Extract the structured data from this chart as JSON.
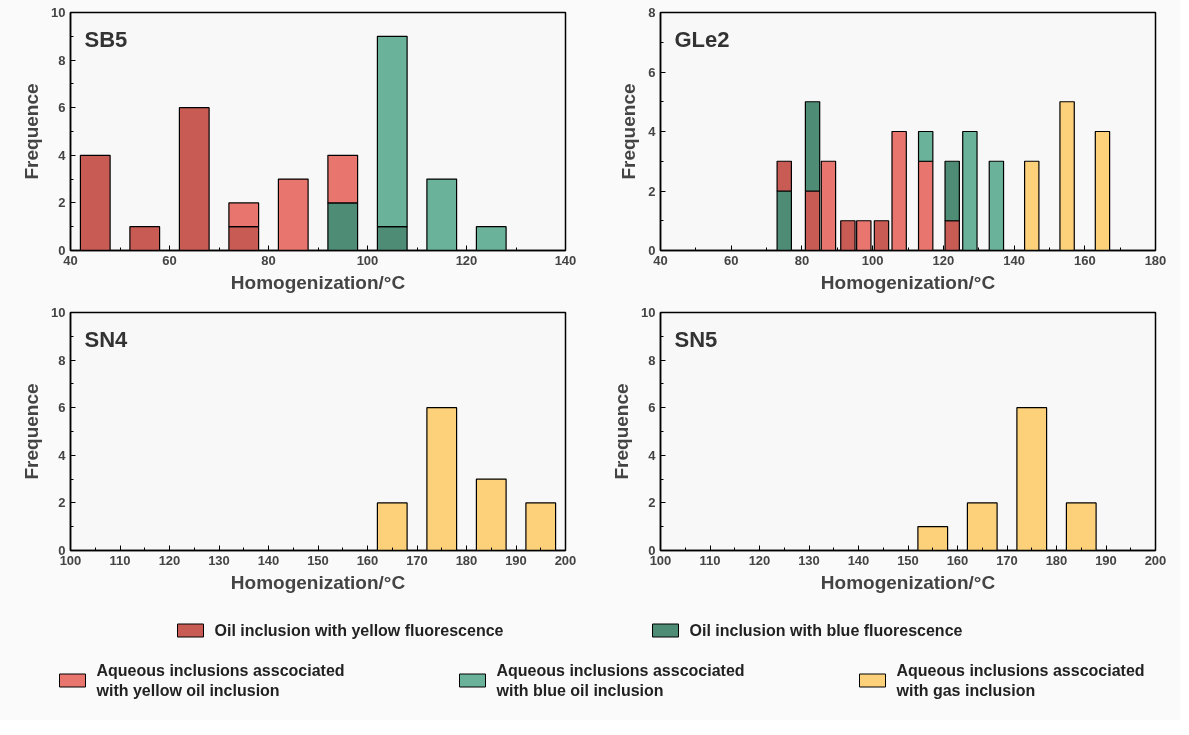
{
  "chart_data": [
    {
      "type": "bar",
      "stacked": true,
      "title": "SB5",
      "xlabel": "Homogenization/°C",
      "ylabel": "Frequence",
      "xlim": [
        40,
        140
      ],
      "xticks": [
        40,
        60,
        80,
        100,
        120,
        140
      ],
      "ylim": [
        0,
        10
      ],
      "yticks": [
        0,
        2,
        4,
        6,
        8,
        10
      ],
      "grid": false,
      "legend": "bottom",
      "x": [
        45,
        55,
        65,
        75,
        85,
        95,
        105,
        115,
        125
      ],
      "series": [
        {
          "name": "Oil inclusion with yellow fluorescence",
          "color": "#c85c55",
          "values": [
            4,
            1,
            6,
            1,
            null,
            null,
            null,
            null,
            null
          ]
        },
        {
          "name": "Oil inclusion with blue fluorescence",
          "color": "#4e8c76",
          "values": [
            null,
            null,
            null,
            null,
            null,
            2,
            1,
            null,
            null
          ]
        },
        {
          "name": "Aqueous inclusions asscociated with yellow oil inclusion",
          "color": "#e8766e",
          "values": [
            null,
            null,
            null,
            1,
            3,
            2,
            null,
            null,
            null
          ]
        },
        {
          "name": "Aqueous inclusions asscociated with blue oil inclusion",
          "color": "#6ab39a",
          "values": [
            null,
            null,
            null,
            null,
            null,
            null,
            8,
            3,
            1
          ]
        }
      ]
    },
    {
      "type": "bar",
      "stacked": true,
      "title": "GLe2",
      "xlabel": "Homogenization/°C",
      "ylabel": "Frequence",
      "xlim": [
        40,
        180
      ],
      "xticks": [
        40,
        60,
        80,
        100,
        120,
        140,
        160,
        180
      ],
      "ylim": [
        0,
        8
      ],
      "yticks": [
        0,
        2,
        4,
        6,
        8
      ],
      "grid": false,
      "legend": "bottom",
      "x": [
        75,
        83,
        87.5,
        93,
        97.5,
        102.5,
        107.5,
        115,
        122.5,
        127.5,
        135,
        145,
        155,
        165
      ],
      "series": [
        {
          "name": "Oil inclusion with yellow fluorescence",
          "color": "#c85c55",
          "values": [
            null,
            2,
            null,
            1,
            null,
            1,
            null,
            null,
            1,
            null,
            null,
            null,
            null,
            null
          ]
        },
        {
          "name": "Oil inclusion with blue fluorescence",
          "color": "#4e8c76",
          "values": [
            2,
            3,
            null,
            null,
            null,
            null,
            null,
            null,
            2,
            null,
            null,
            null,
            null,
            null
          ]
        },
        {
          "color": "#c85c55",
          "values": [
            1,
            null,
            null,
            null,
            null,
            null,
            null,
            null,
            null,
            null,
            null,
            null,
            null,
            null
          ]
        },
        {
          "name": "Aqueous inclusions asscociated with yellow oil inclusion",
          "color": "#e8766e",
          "values": [
            null,
            null,
            3,
            null,
            1,
            null,
            4,
            3,
            null,
            null,
            null,
            null,
            null,
            null
          ]
        },
        {
          "name": "Aqueous inclusions asscociated with blue oil inclusion",
          "color": "#6ab39a",
          "values": [
            null,
            null,
            null,
            null,
            null,
            null,
            null,
            1,
            null,
            4,
            3,
            null,
            null,
            null
          ]
        },
        {
          "name": "Aqueous inclusions asscociated with gas inclusion",
          "color": "#fdd07a",
          "values": [
            null,
            null,
            null,
            null,
            null,
            null,
            null,
            null,
            null,
            null,
            null,
            3,
            5,
            4
          ]
        }
      ]
    },
    {
      "type": "bar",
      "stacked": true,
      "title": "SN4",
      "xlabel": "Homogenization/°C",
      "ylabel": "Frequence",
      "xlim": [
        100,
        200
      ],
      "xticks": [
        100,
        110,
        120,
        130,
        140,
        150,
        160,
        170,
        180,
        190,
        200
      ],
      "ylim": [
        0,
        10
      ],
      "yticks": [
        0,
        2,
        4,
        6,
        8,
        10
      ],
      "grid": false,
      "legend": "bottom",
      "x": [
        165,
        175,
        185,
        195
      ],
      "series": [
        {
          "name": "Aqueous inclusions asscociated with gas inclusion",
          "color": "#fdd07a",
          "values": [
            2,
            6,
            3,
            2
          ]
        }
      ]
    },
    {
      "type": "bar",
      "stacked": true,
      "title": "SN5",
      "xlabel": "Homogenization/°C",
      "ylabel": "Frequence",
      "xlim": [
        100,
        200
      ],
      "xticks": [
        100,
        110,
        120,
        130,
        140,
        150,
        160,
        170,
        180,
        190,
        200
      ],
      "ylim": [
        0,
        10
      ],
      "yticks": [
        0,
        2,
        4,
        6,
        8,
        10
      ],
      "grid": false,
      "legend": "bottom",
      "x": [
        155,
        165,
        175,
        185
      ],
      "series": [
        {
          "name": "Aqueous inclusions asscociated with gas inclusion",
          "color": "#fdd07a",
          "values": [
            1,
            2,
            6,
            2
          ]
        }
      ]
    }
  ]
}
